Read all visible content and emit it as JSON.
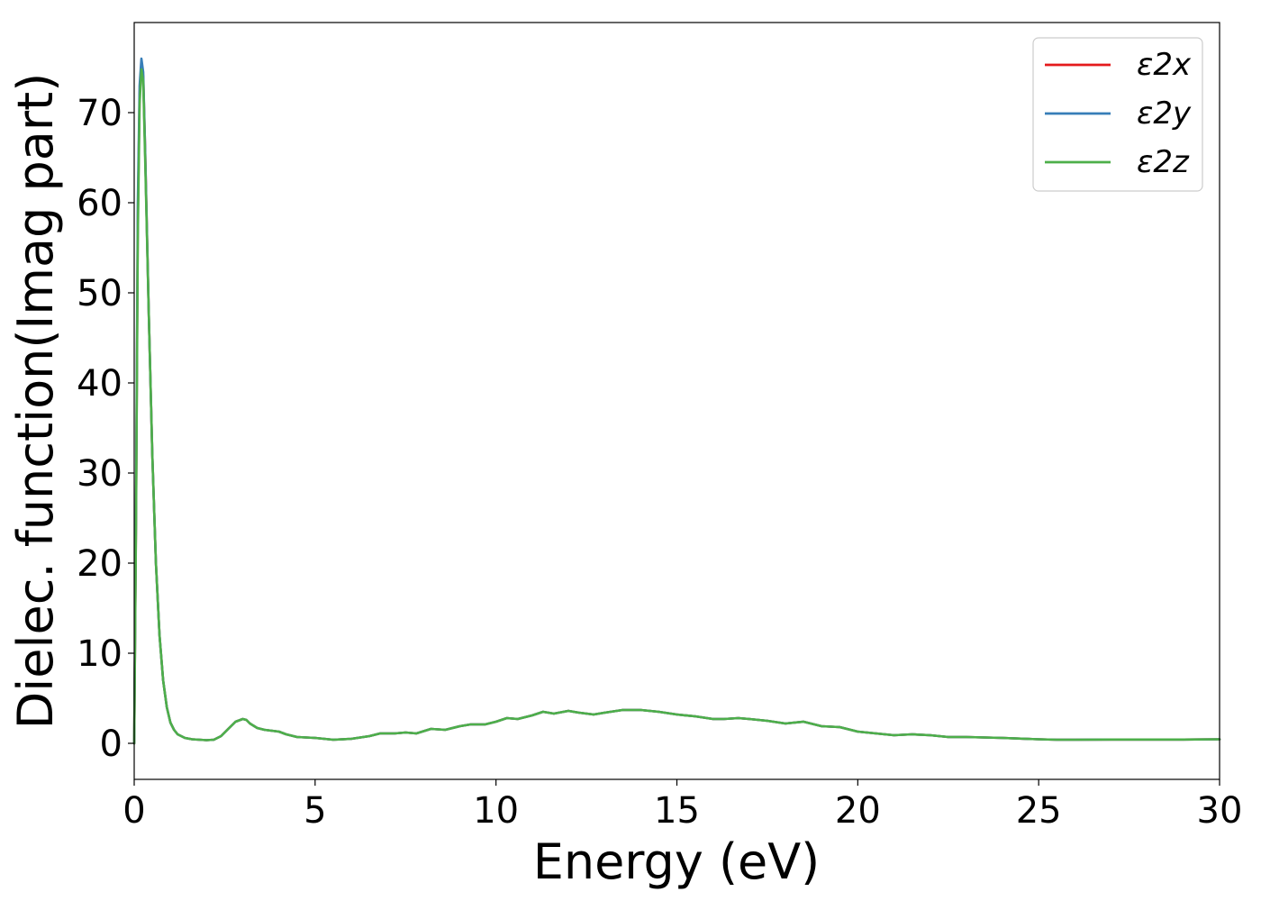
{
  "chart_data": {
    "type": "line",
    "title": "",
    "xlabel": "Energy (eV)",
    "ylabel": "Dielec. function(Imag part)",
    "xlim": [
      0,
      30
    ],
    "ylim": [
      -4,
      80
    ],
    "xticks": [
      0,
      5,
      10,
      15,
      20,
      25,
      30
    ],
    "yticks": [
      0,
      10,
      20,
      30,
      40,
      50,
      60,
      70
    ],
    "grid": false,
    "legend": "top-right",
    "series": [
      {
        "name": "ε2x",
        "color": "#e41a1c",
        "x": [
          0,
          0.05,
          0.1,
          0.15,
          0.2,
          0.25,
          0.3,
          0.4,
          0.5,
          0.6,
          0.7,
          0.8,
          0.9,
          1.0,
          1.1,
          1.2,
          1.4,
          1.6,
          1.8,
          2.0,
          2.2,
          2.4,
          2.6,
          2.8,
          3.0,
          3.1,
          3.2,
          3.4,
          3.6,
          3.8,
          4.0,
          4.2,
          4.5,
          5.0,
          5.5,
          6.0,
          6.5,
          6.8,
          7.2,
          7.5,
          7.8,
          8.2,
          8.6,
          9.0,
          9.3,
          9.7,
          10.0,
          10.3,
          10.6,
          11.0,
          11.3,
          11.6,
          12.0,
          12.3,
          12.7,
          13.0,
          13.5,
          14.0,
          14.5,
          15.0,
          15.5,
          16.0,
          16.3,
          16.7,
          17.0,
          17.5,
          18.0,
          18.5,
          19.0,
          19.5,
          20.0,
          20.5,
          21.0,
          21.5,
          22.0,
          22.5,
          23.0,
          24.0,
          25.0,
          25.5,
          26.0,
          27.0,
          28.0,
          29.0,
          30.0
        ],
        "values": [
          0,
          25,
          58,
          72,
          75.5,
          74,
          66,
          48,
          32,
          20,
          12,
          7,
          4,
          2.3,
          1.5,
          1.0,
          0.6,
          0.45,
          0.4,
          0.35,
          0.4,
          0.8,
          1.6,
          2.4,
          2.7,
          2.6,
          2.2,
          1.7,
          1.5,
          1.4,
          1.3,
          1.0,
          0.7,
          0.6,
          0.4,
          0.5,
          0.8,
          1.1,
          1.1,
          1.2,
          1.1,
          1.6,
          1.5,
          1.9,
          2.1,
          2.1,
          2.4,
          2.8,
          2.7,
          3.1,
          3.5,
          3.3,
          3.6,
          3.4,
          3.2,
          3.4,
          3.7,
          3.7,
          3.5,
          3.2,
          3.0,
          2.7,
          2.7,
          2.8,
          2.7,
          2.5,
          2.2,
          2.4,
          1.9,
          1.8,
          1.3,
          1.1,
          0.9,
          1.0,
          0.9,
          0.7,
          0.7,
          0.6,
          0.45,
          0.4,
          0.4,
          0.42,
          0.42,
          0.42,
          0.45
        ]
      },
      {
        "name": "ε2y",
        "color": "#377eb8",
        "x": [
          0,
          0.05,
          0.1,
          0.15,
          0.2,
          0.25,
          0.3,
          0.4,
          0.5,
          0.6,
          0.7,
          0.8,
          0.9,
          1.0,
          1.1,
          1.2,
          1.4,
          1.6,
          1.8,
          2.0,
          2.2,
          2.4,
          2.6,
          2.8,
          3.0,
          3.1,
          3.2,
          3.4,
          3.6,
          3.8,
          4.0,
          4.2,
          4.5,
          5.0,
          5.5,
          6.0,
          6.5,
          6.8,
          7.2,
          7.5,
          7.8,
          8.2,
          8.6,
          9.0,
          9.3,
          9.7,
          10.0,
          10.3,
          10.6,
          11.0,
          11.3,
          11.6,
          12.0,
          12.3,
          12.7,
          13.0,
          13.5,
          14.0,
          14.5,
          15.0,
          15.5,
          16.0,
          16.3,
          16.7,
          17.0,
          17.5,
          18.0,
          18.5,
          19.0,
          19.5,
          20.0,
          20.5,
          21.0,
          21.5,
          22.0,
          22.5,
          23.0,
          24.0,
          25.0,
          25.5,
          26.0,
          27.0,
          28.0,
          29.0,
          30.0
        ],
        "values": [
          0,
          26,
          60,
          73,
          76,
          74.5,
          66,
          48,
          32,
          20,
          12,
          7,
          4,
          2.3,
          1.5,
          1.0,
          0.6,
          0.45,
          0.4,
          0.35,
          0.4,
          0.8,
          1.6,
          2.4,
          2.7,
          2.6,
          2.2,
          1.7,
          1.5,
          1.4,
          1.3,
          1.0,
          0.7,
          0.6,
          0.4,
          0.5,
          0.8,
          1.1,
          1.1,
          1.2,
          1.1,
          1.6,
          1.5,
          1.9,
          2.1,
          2.1,
          2.4,
          2.8,
          2.7,
          3.1,
          3.5,
          3.3,
          3.6,
          3.4,
          3.2,
          3.4,
          3.7,
          3.7,
          3.5,
          3.2,
          3.0,
          2.7,
          2.7,
          2.8,
          2.7,
          2.5,
          2.2,
          2.4,
          1.9,
          1.8,
          1.3,
          1.1,
          0.9,
          1.0,
          0.9,
          0.7,
          0.7,
          0.6,
          0.45,
          0.4,
          0.4,
          0.42,
          0.42,
          0.42,
          0.45
        ]
      },
      {
        "name": "ε2z",
        "color": "#4daf4a",
        "x": [
          0,
          0.05,
          0.1,
          0.15,
          0.2,
          0.25,
          0.3,
          0.4,
          0.5,
          0.6,
          0.7,
          0.8,
          0.9,
          1.0,
          1.1,
          1.2,
          1.4,
          1.6,
          1.8,
          2.0,
          2.2,
          2.4,
          2.6,
          2.8,
          3.0,
          3.1,
          3.2,
          3.4,
          3.6,
          3.8,
          4.0,
          4.2,
          4.5,
          5.0,
          5.5,
          6.0,
          6.5,
          6.8,
          7.2,
          7.5,
          7.8,
          8.2,
          8.6,
          9.0,
          9.3,
          9.7,
          10.0,
          10.3,
          10.6,
          11.0,
          11.3,
          11.6,
          12.0,
          12.3,
          12.7,
          13.0,
          13.5,
          14.0,
          14.5,
          15.0,
          15.5,
          16.0,
          16.3,
          16.7,
          17.0,
          17.5,
          18.0,
          18.5,
          19.0,
          19.5,
          20.0,
          20.5,
          21.0,
          21.5,
          22.0,
          22.5,
          23.0,
          24.0,
          25.0,
          25.5,
          26.0,
          27.0,
          28.0,
          29.0,
          30.0
        ],
        "values": [
          0,
          24,
          56,
          71,
          74.8,
          73.5,
          65,
          48,
          32,
          20,
          12,
          7,
          4,
          2.3,
          1.5,
          1.0,
          0.6,
          0.45,
          0.4,
          0.35,
          0.4,
          0.8,
          1.6,
          2.4,
          2.7,
          2.6,
          2.2,
          1.7,
          1.5,
          1.4,
          1.3,
          1.0,
          0.7,
          0.6,
          0.4,
          0.5,
          0.8,
          1.1,
          1.1,
          1.2,
          1.1,
          1.6,
          1.5,
          1.9,
          2.1,
          2.1,
          2.4,
          2.8,
          2.7,
          3.1,
          3.5,
          3.3,
          3.6,
          3.4,
          3.2,
          3.4,
          3.7,
          3.7,
          3.5,
          3.2,
          3.0,
          2.7,
          2.7,
          2.8,
          2.7,
          2.5,
          2.2,
          2.4,
          1.9,
          1.8,
          1.3,
          1.1,
          0.9,
          1.0,
          0.9,
          0.7,
          0.7,
          0.6,
          0.45,
          0.4,
          0.4,
          0.42,
          0.42,
          0.42,
          0.45
        ]
      }
    ]
  }
}
